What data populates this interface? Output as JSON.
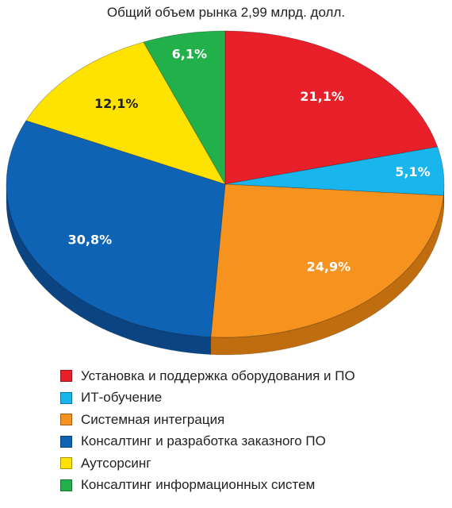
{
  "chart_data": {
    "type": "pie",
    "title": "Общий объем рынка 2,99 млрд. долл.",
    "slices": [
      {
        "label": "Установка и поддержка оборудования и ПО",
        "value": 21.1,
        "value_label": "21,1%",
        "color": "#e8202a",
        "side_color": "#a3161d",
        "label_color": "#ffffff"
      },
      {
        "label": "ИТ-обучение",
        "value": 5.1,
        "value_label": "5,1%",
        "color": "#18b6ec",
        "side_color": "#0f7ea6",
        "label_color": "#ffffff"
      },
      {
        "label": "Системная интеграция",
        "value": 24.9,
        "value_label": "24,9%",
        "color": "#f6921e",
        "side_color": "#c06d0f",
        "label_color": "#ffffff"
      },
      {
        "label": "Консалтинг и разработка заказного ПО",
        "value": 30.8,
        "value_label": "30,8%",
        "color": "#0f63b5",
        "side_color": "#0a4483",
        "label_color": "#ffffff"
      },
      {
        "label": "Аутсорсинг",
        "value": 12.1,
        "value_label": "12,1%",
        "color": "#ffe300",
        "side_color": "#c7b000",
        "label_color": "#222222"
      },
      {
        "label": "Консалтинг информационных систем",
        "value": 6.1,
        "value_label": "6,1%",
        "color": "#22b04b",
        "side_color": "#167a33",
        "label_color": "#ffffff"
      }
    ]
  }
}
